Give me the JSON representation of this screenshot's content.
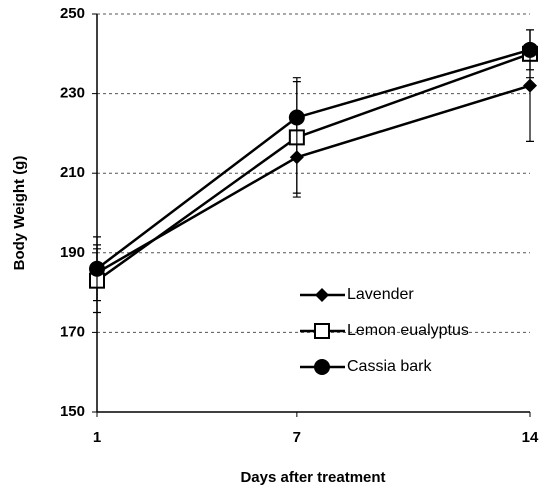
{
  "chart_data": {
    "type": "line",
    "ylabel": "Body Weight (g)",
    "xlabel": "Days after treatment",
    "x": [
      1,
      7,
      14
    ],
    "xlim": [
      1,
      14
    ],
    "xticks": [
      1,
      7,
      14
    ],
    "ylim": [
      150,
      250
    ],
    "yticks": [
      150,
      170,
      190,
      210,
      230,
      250
    ],
    "grid": true,
    "series": [
      {
        "name": "Lavender",
        "color": "#000000",
        "marker": "diamond",
        "values": [
          185,
          214,
          232
        ],
        "errors": [
          7,
          10,
          14
        ]
      },
      {
        "name": "Lemon eualyptus",
        "color": "#000000",
        "marker": "square",
        "values": [
          183,
          219,
          240
        ],
        "errors": [
          8,
          14,
          6
        ]
      },
      {
        "name": "Cassia bark",
        "color": "#000000",
        "marker": "circle",
        "values": [
          186,
          224,
          241
        ],
        "errors": [
          8,
          10,
          5
        ]
      }
    ]
  }
}
